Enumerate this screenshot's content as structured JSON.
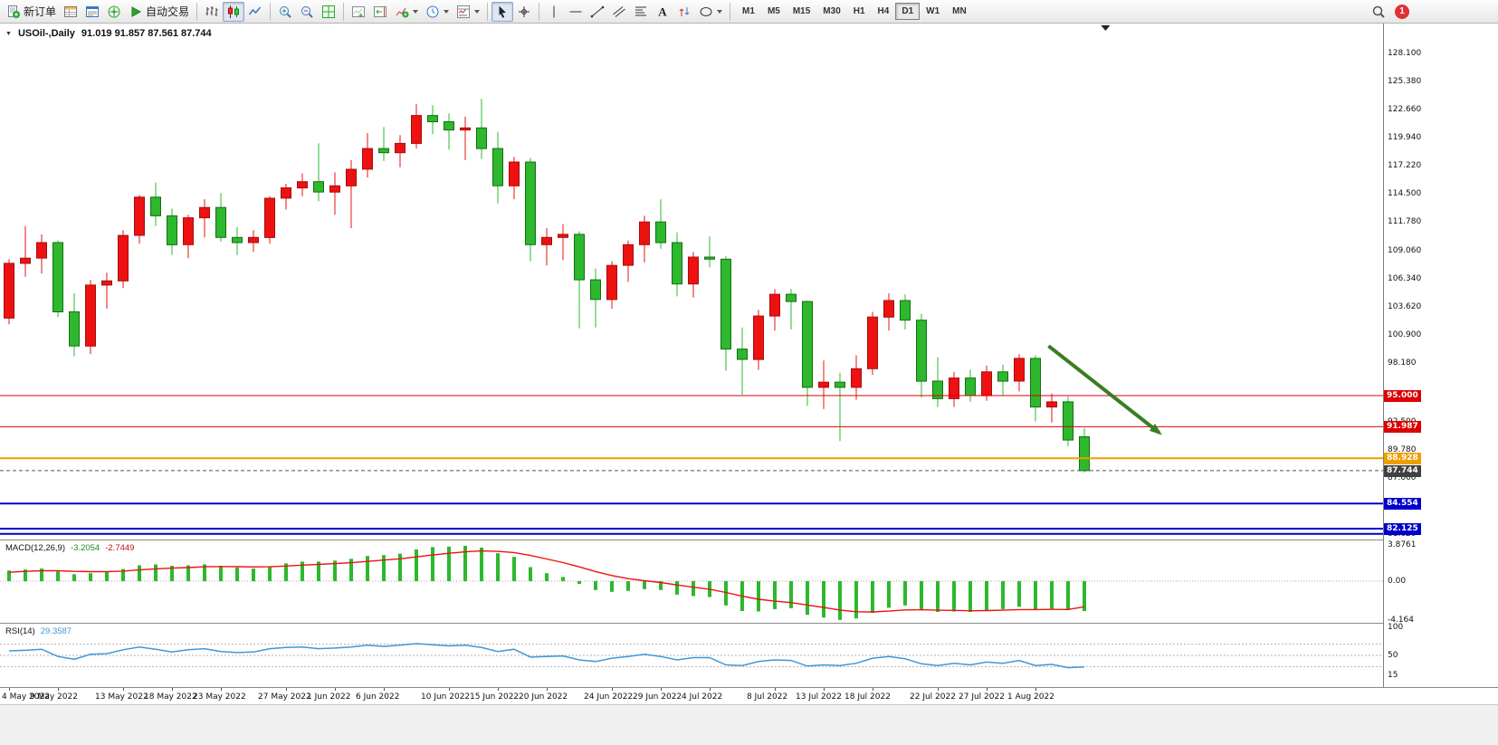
{
  "toolbar": {
    "groups": [
      {
        "buttons": [
          {
            "name": "new-order-button",
            "icon": "new-order-icon",
            "label": "新订单"
          },
          {
            "name": "market-watch-button",
            "icon": "market-watch-icon"
          },
          {
            "name": "data-window-button",
            "icon": "data-window-icon"
          },
          {
            "name": "navigator-button",
            "icon": "navigator-icon"
          },
          {
            "name": "autotrading-button",
            "icon": "autotrading-icon",
            "label": "自动交易"
          }
        ]
      },
      {
        "buttons": [
          {
            "name": "bar-chart-button",
            "icon": "bar-chart-icon"
          },
          {
            "name": "candlestick-chart-button",
            "icon": "candlestick-chart-icon",
            "active": true
          },
          {
            "name": "line-chart-button",
            "icon": "line-chart-icon"
          }
        ]
      },
      {
        "buttons": [
          {
            "name": "zoom-in-button",
            "icon": "zoom-in-icon"
          },
          {
            "name": "zoom-out-button",
            "icon": "zoom-out-icon"
          },
          {
            "name": "tile-windows-button",
            "icon": "tile-windows-icon"
          }
        ]
      },
      {
        "buttons": [
          {
            "name": "auto-scroll-button",
            "icon": "auto-scroll-icon"
          },
          {
            "name": "chart-shift-button",
            "icon": "chart-shift-icon"
          },
          {
            "name": "indicators-button",
            "icon": "indicators-icon",
            "dropdown": true
          },
          {
            "name": "periods-button",
            "icon": "clock-icon",
            "dropdown": true
          },
          {
            "name": "templates-button",
            "icon": "template-icon",
            "dropdown": true
          }
        ]
      },
      {
        "buttons": [
          {
            "name": "cursor-button",
            "icon": "cursor-icon",
            "active": true
          },
          {
            "name": "crosshair-button",
            "icon": "crosshair-icon"
          }
        ]
      },
      {
        "buttons": [
          {
            "name": "vertical-line-button",
            "icon": "vline-icon"
          },
          {
            "name": "horizontal-line-button",
            "icon": "hline-icon"
          },
          {
            "name": "trendline-button",
            "icon": "trendline-icon"
          },
          {
            "name": "channel-button",
            "icon": "channel-icon"
          },
          {
            "name": "fibonacci-button",
            "icon": "fibonacci-icon"
          },
          {
            "name": "text-button",
            "icon": "text-icon"
          },
          {
            "name": "arrows-button",
            "icon": "arrows-icon"
          },
          {
            "name": "shapes-button",
            "icon": "shapes-icon",
            "dropdown": true
          }
        ]
      }
    ],
    "timeframes": [
      {
        "label": "M1"
      },
      {
        "label": "M5"
      },
      {
        "label": "M15"
      },
      {
        "label": "M30"
      },
      {
        "label": "H1"
      },
      {
        "label": "H4"
      },
      {
        "label": "D1",
        "active": true
      },
      {
        "label": "W1"
      },
      {
        "label": "MN"
      }
    ],
    "notification_count": "1"
  },
  "chart_data": {
    "type": "candlestick",
    "symbol": "USOil-",
    "timeframe": "Daily",
    "header": "USOil-,Daily",
    "header_ohlc": "91.019 91.857 87.561 87.744",
    "current_bar": {
      "open": 91.019,
      "high": 91.857,
      "low": 87.561,
      "close": 87.744
    },
    "visible_price_range": [
      81.2,
      130.65
    ],
    "up_color": "#ee1111",
    "up_stroke": "#a50d0d",
    "down_color": "#2db82d",
    "down_stroke": "#156e15",
    "grid": false,
    "shift_marker_bar": 67.3,
    "price_axis": {
      "labels": [
        "128.100",
        "125.380",
        "122.660",
        "119.940",
        "117.220",
        "114.500",
        "111.780",
        "109.060",
        "106.340",
        "103.620",
        "100.900",
        "98.180",
        "92.500",
        "89.780",
        "87.060",
        "84.340",
        "81.620"
      ],
      "badges": [
        {
          "text": "95.000",
          "value": 95.0,
          "color": "#dd0000"
        },
        {
          "text": "91.987",
          "value": 91.987,
          "color": "#dd0000"
        },
        {
          "text": "88.928",
          "value": 88.928,
          "color": "#ee9f00"
        },
        {
          "text": "87.744",
          "value": 87.744,
          "color": "#404040"
        },
        {
          "text": "84.554",
          "value": 84.554,
          "color": "#0000cc"
        },
        {
          "text": "82.125",
          "value": 82.125,
          "color": "#0000cc"
        }
      ]
    },
    "hlines": [
      {
        "price": 95.0,
        "color": "#dd0000",
        "width": 1
      },
      {
        "price": 91.987,
        "color": "#dd0000",
        "width": 1
      },
      {
        "price": 88.928,
        "color": "#ee9f00",
        "width": 2
      },
      {
        "price": 87.744,
        "color": "#555555",
        "width": 1,
        "dash": "4 3"
      },
      {
        "price": 84.554,
        "color": "#0000cc",
        "width": 2
      },
      {
        "price": 82.125,
        "color": "#0000cc",
        "width": 2
      },
      {
        "price": 81.62,
        "color": "#0000cc",
        "width": 2
      }
    ],
    "annotations": [
      {
        "type": "arrow",
        "color": "#3a7d22",
        "from_bar": 63.8,
        "from_price": 99.8,
        "to_bar": 70.6,
        "to_price": 91.4
      }
    ],
    "x_ticks": [
      {
        "label": "4 May 2022",
        "index": 0
      },
      {
        "label": "9 May 2022",
        "index": 3
      },
      {
        "label": "13 May 2022",
        "index": 7
      },
      {
        "label": "18 May 2022",
        "index": 10
      },
      {
        "label": "23 May 2022",
        "index": 13
      },
      {
        "label": "27 May 2022",
        "index": 17
      },
      {
        "label": "1 Jun 2022",
        "index": 20
      },
      {
        "label": "6 Jun 2022",
        "index": 23
      },
      {
        "label": "10 Jun 2022",
        "index": 27
      },
      {
        "label": "15 Jun 2022",
        "index": 30
      },
      {
        "label": "20 Jun 2022",
        "index": 33
      },
      {
        "label": "24 Jun 2022",
        "index": 37
      },
      {
        "label": "29 Jun 2022",
        "index": 40
      },
      {
        "label": "4 Jul 2022",
        "index": 43
      },
      {
        "label": "8 Jul 2022",
        "index": 47
      },
      {
        "label": "13 Jul 2022",
        "index": 50
      },
      {
        "label": "18 Jul 2022",
        "index": 53
      },
      {
        "label": "22 Jul 2022",
        "index": 57
      },
      {
        "label": "27 Jul 2022",
        "index": 60
      },
      {
        "label": "1 Aug 2022",
        "index": 63
      }
    ],
    "candles": [
      [
        "4 May 2022",
        102.5,
        108.2,
        101.9,
        107.8
      ],
      [
        "5 May 2022",
        107.8,
        111.4,
        106.5,
        108.3
      ],
      [
        "6 May 2022",
        108.3,
        110.6,
        106.8,
        109.8
      ],
      [
        "9 May 2022",
        109.8,
        110.0,
        102.6,
        103.1
      ],
      [
        "10 May 2022",
        103.1,
        104.9,
        98.8,
        99.8
      ],
      [
        "11 May 2022",
        99.8,
        106.2,
        99.0,
        105.7
      ],
      [
        "12 May 2022",
        105.7,
        106.9,
        103.4,
        106.1
      ],
      [
        "13 May 2022",
        106.1,
        111.0,
        105.4,
        110.5
      ],
      [
        "16 May 2022",
        110.5,
        114.4,
        109.7,
        114.2
      ],
      [
        "17 May 2022",
        114.2,
        115.6,
        111.4,
        112.4
      ],
      [
        "18 May 2022",
        112.4,
        113.1,
        108.6,
        109.6
      ],
      [
        "19 May 2022",
        109.6,
        112.5,
        108.3,
        112.2
      ],
      [
        "20 May 2022",
        112.2,
        114.0,
        110.3,
        113.2
      ],
      [
        "23 May 2022",
        113.2,
        114.6,
        109.9,
        110.3
      ],
      [
        "24 May 2022",
        110.3,
        111.3,
        108.6,
        109.8
      ],
      [
        "25 May 2022",
        109.8,
        111.0,
        108.9,
        110.3
      ],
      [
        "26 May 2022",
        110.3,
        114.3,
        109.7,
        114.1
      ],
      [
        "27 May 2022",
        114.1,
        115.5,
        113.0,
        115.1
      ],
      [
        "30 May 2022",
        115.1,
        116.5,
        114.3,
        115.7
      ],
      [
        "31 May 2022",
        115.7,
        119.4,
        113.8,
        114.7
      ],
      [
        "1 Jun 2022",
        114.7,
        116.6,
        112.5,
        115.3
      ],
      [
        "2 Jun 2022",
        115.3,
        117.8,
        111.2,
        116.9
      ],
      [
        "3 Jun 2022",
        116.9,
        120.4,
        116.1,
        118.9
      ],
      [
        "6 Jun 2022",
        118.9,
        121.0,
        117.7,
        118.5
      ],
      [
        "7 Jun 2022",
        118.5,
        120.2,
        117.1,
        119.4
      ],
      [
        "8 Jun 2022",
        119.4,
        123.2,
        118.9,
        122.1
      ],
      [
        "9 Jun 2022",
        122.1,
        123.1,
        120.3,
        121.5
      ],
      [
        "10 Jun 2022",
        121.5,
        122.3,
        118.8,
        120.7
      ],
      [
        "13 Jun 2022",
        120.7,
        122.0,
        117.8,
        120.9
      ],
      [
        "14 Jun 2022",
        120.9,
        123.7,
        117.9,
        118.9
      ],
      [
        "15 Jun 2022",
        118.9,
        120.5,
        113.6,
        115.3
      ],
      [
        "16 Jun 2022",
        115.3,
        118.1,
        114.0,
        117.6
      ],
      [
        "17 Jun 2022",
        117.6,
        118.0,
        108.0,
        109.6
      ],
      [
        "20 Jun 2022",
        109.6,
        111.2,
        107.6,
        110.3
      ],
      [
        "21 Jun 2022",
        110.3,
        111.6,
        108.1,
        110.6
      ],
      [
        "22 Jun 2022",
        110.6,
        110.9,
        101.5,
        106.2
      ],
      [
        "23 Jun 2022",
        106.2,
        107.3,
        101.6,
        104.3
      ],
      [
        "24 Jun 2022",
        104.3,
        108.0,
        103.4,
        107.6
      ],
      [
        "27 Jun 2022",
        107.6,
        110.0,
        106.0,
        109.6
      ],
      [
        "28 Jun 2022",
        109.6,
        112.4,
        107.9,
        111.8
      ],
      [
        "29 Jun 2022",
        111.8,
        114.0,
        109.2,
        109.8
      ],
      [
        "30 Jun 2022",
        109.8,
        110.8,
        104.6,
        105.8
      ],
      [
        "1 Jul 2022",
        105.8,
        108.9,
        104.5,
        108.4
      ],
      [
        "4 Jul 2022",
        108.4,
        110.4,
        107.4,
        108.2
      ],
      [
        "5 Jul 2022",
        108.2,
        108.5,
        97.4,
        99.5
      ],
      [
        "6 Jul 2022",
        99.5,
        101.6,
        95.1,
        98.5
      ],
      [
        "7 Jul 2022",
        98.5,
        103.3,
        97.5,
        102.7
      ],
      [
        "8 Jul 2022",
        102.7,
        105.3,
        101.3,
        104.8
      ],
      [
        "11 Jul 2022",
        104.8,
        105.3,
        101.4,
        104.1
      ],
      [
        "12 Jul 2022",
        104.1,
        104.2,
        94.0,
        95.8
      ],
      [
        "13 Jul 2022",
        95.8,
        98.4,
        93.7,
        96.3
      ],
      [
        "14 Jul 2022",
        96.3,
        97.2,
        90.6,
        95.8
      ],
      [
        "15 Jul 2022",
        95.8,
        98.9,
        94.6,
        97.6
      ],
      [
        "18 Jul 2022",
        97.6,
        103.1,
        97.0,
        102.6
      ],
      [
        "19 Jul 2022",
        102.6,
        104.9,
        101.3,
        104.2
      ],
      [
        "20 Jul 2022",
        104.2,
        104.8,
        101.4,
        102.3
      ],
      [
        "21 Jul 2022",
        102.3,
        102.9,
        94.8,
        96.4
      ],
      [
        "22 Jul 2022",
        96.4,
        98.7,
        93.9,
        94.7
      ],
      [
        "25 Jul 2022",
        94.7,
        97.3,
        93.9,
        96.7
      ],
      [
        "26 Jul 2022",
        96.7,
        97.5,
        94.4,
        95.0
      ],
      [
        "27 Jul 2022",
        95.0,
        97.9,
        94.5,
        97.3
      ],
      [
        "28 Jul 2022",
        97.3,
        98.0,
        95.0,
        96.4
      ],
      [
        "29 Jul 2022",
        96.4,
        99.0,
        95.4,
        98.6
      ],
      [
        "1 Aug 2022",
        98.6,
        98.9,
        92.5,
        93.9
      ],
      [
        "2 Aug 2022",
        93.9,
        95.2,
        92.4,
        94.4
      ],
      [
        "3 Aug 2022",
        94.4,
        94.9,
        90.1,
        90.7
      ],
      [
        "4 Aug 2022",
        91.019,
        91.857,
        87.561,
        87.744
      ]
    ],
    "indicators": [
      {
        "name": "MACD",
        "label": "MACD(12,26,9)",
        "value1_text": "-3.2054",
        "value2_text": "-2.7449",
        "range": [
          -4.164,
          3.8761
        ],
        "axis_labels": [
          {
            "text": "3.8761",
            "value": 3.8761
          },
          {
            "text": "0.00",
            "value": 0
          },
          {
            "text": "-4.164",
            "value": -4.164
          }
        ],
        "histogram_color": "#2db82d",
        "signal_color": "#ee1111",
        "histogram": [
          1.15,
          1.25,
          1.35,
          1.05,
          0.75,
          0.85,
          1.0,
          1.3,
          1.7,
          1.8,
          1.65,
          1.7,
          1.8,
          1.65,
          1.45,
          1.35,
          1.6,
          1.9,
          2.1,
          2.1,
          2.2,
          2.4,
          2.7,
          2.8,
          2.95,
          3.4,
          3.65,
          3.7,
          3.8,
          3.6,
          3.0,
          2.6,
          1.5,
          0.85,
          0.45,
          -0.3,
          -0.95,
          -1.15,
          -1.05,
          -0.85,
          -0.95,
          -1.45,
          -1.6,
          -1.7,
          -2.6,
          -3.2,
          -3.25,
          -3.0,
          -2.9,
          -3.6,
          -3.9,
          -4.16,
          -4.0,
          -3.4,
          -2.85,
          -2.6,
          -3.0,
          -3.3,
          -3.25,
          -3.3,
          -3.1,
          -3.0,
          -2.75,
          -3.05,
          -2.95,
          -3.1,
          -3.2054
        ],
        "signal": [
          0.95,
          1.05,
          1.12,
          1.12,
          1.05,
          1.02,
          1.02,
          1.08,
          1.2,
          1.32,
          1.4,
          1.46,
          1.54,
          1.56,
          1.55,
          1.52,
          1.54,
          1.62,
          1.72,
          1.8,
          1.88,
          1.98,
          2.12,
          2.26,
          2.4,
          2.6,
          2.81,
          2.99,
          3.15,
          3.24,
          3.19,
          3.07,
          2.76,
          2.38,
          1.99,
          1.53,
          1.03,
          0.6,
          0.27,
          0.05,
          -0.15,
          -0.41,
          -0.65,
          -0.86,
          -1.21,
          -1.61,
          -1.94,
          -2.15,
          -2.3,
          -2.56,
          -2.83,
          -3.1,
          -3.28,
          -3.3,
          -3.21,
          -3.09,
          -3.07,
          -3.12,
          -3.14,
          -3.17,
          -3.16,
          -3.12,
          -3.05,
          -3.05,
          -3.03,
          -3.04,
          -2.7449
        ]
      },
      {
        "name": "RSI",
        "label": "RSI(14)",
        "value_text": "29.3587",
        "range": [
          0,
          100
        ],
        "axis_labels": [
          {
            "text": "100",
            "value": 100
          },
          {
            "text": "50",
            "value": 50
          },
          {
            "text": "15",
            "value": 15
          }
        ],
        "levels": [
          70,
          50,
          30
        ],
        "color": "#3f97d9",
        "series": [
          58,
          59,
          61,
          48,
          43,
          52,
          53,
          60,
          65,
          61,
          56,
          60,
          62,
          57,
          55,
          56,
          62,
          64,
          65,
          62,
          63,
          65,
          68,
          66,
          68,
          71,
          69,
          67,
          68,
          64,
          57,
          61,
          47,
          48,
          49,
          42,
          39,
          45,
          48,
          52,
          48,
          42,
          46,
          46,
          33,
          32,
          39,
          42,
          41,
          31,
          33,
          32,
          36,
          45,
          48,
          44,
          35,
          32,
          36,
          33,
          38,
          36,
          41,
          32,
          34,
          28,
          29.3587
        ]
      }
    ]
  }
}
